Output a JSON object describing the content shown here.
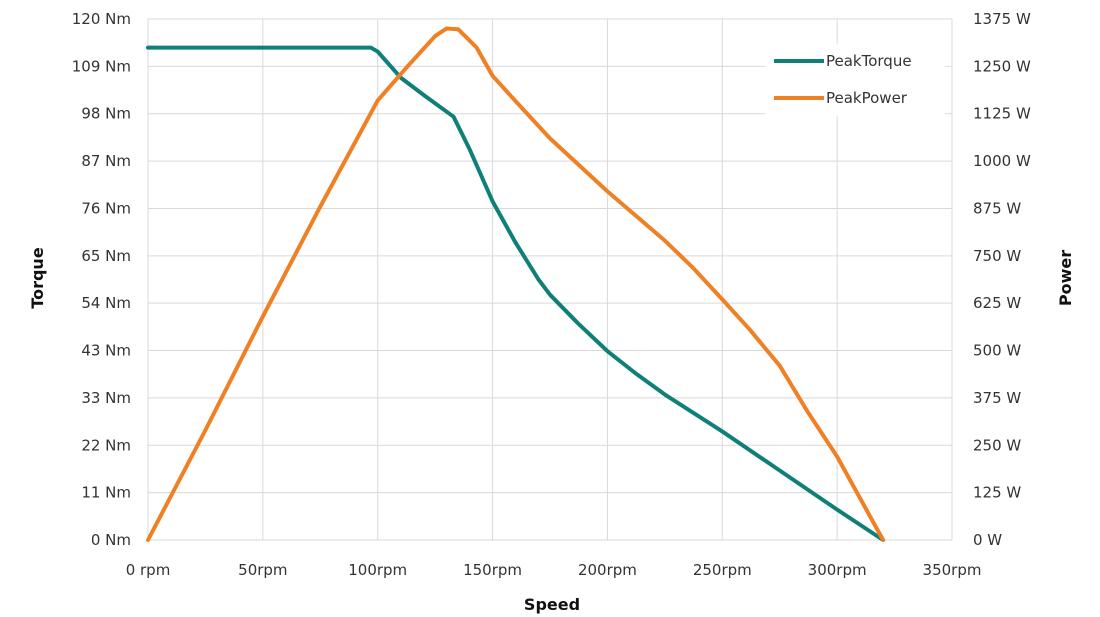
{
  "chart_data": {
    "type": "line",
    "xlabel": "Speed",
    "ylabel_left": "Torque",
    "ylabel_right": "Power",
    "x_ticks": [
      "0 rpm",
      "50rpm",
      "100rpm",
      "150rpm",
      "200rpm",
      "250rpm",
      "300rpm",
      "350rpm"
    ],
    "x_tick_values": [
      0,
      50,
      100,
      150,
      200,
      250,
      300,
      350
    ],
    "left_ticks": [
      "0 Nm",
      "11 Nm",
      "22 Nm",
      "33 Nm",
      "43 Nm",
      "54 Nm",
      "65 Nm",
      "76 Nm",
      "87 Nm",
      "98 Nm",
      "109 Nm",
      "120 Nm"
    ],
    "right_ticks": [
      "0 W",
      "125 W",
      "250 W",
      "375 W",
      "500 W",
      "625 W",
      "750 W",
      "875 W",
      "1000 W",
      "1125 W",
      "1250 W",
      "1375 W"
    ],
    "xlim": [
      0,
      350
    ],
    "ylim_left": [
      0,
      120
    ],
    "ylim_right": [
      0,
      1375
    ],
    "grid": "vertical",
    "legend_position": "top-right",
    "series": [
      {
        "name": "PeakTorque",
        "axis": "left",
        "color": "#0e8078",
        "points": [
          [
            0,
            113.4
          ],
          [
            97,
            113.4
          ],
          [
            100,
            112.5
          ],
          [
            110,
            106.5
          ],
          [
            120,
            102.5
          ],
          [
            133,
            97.5
          ],
          [
            140,
            90
          ],
          [
            150,
            78
          ],
          [
            160,
            68.5
          ],
          [
            170,
            60
          ],
          [
            175,
            56.5
          ],
          [
            187,
            50
          ],
          [
            200,
            43.5
          ],
          [
            212,
            38.5
          ],
          [
            225,
            33.5
          ],
          [
            250,
            25
          ],
          [
            275,
            16
          ],
          [
            300,
            7
          ],
          [
            320,
            0
          ]
        ]
      },
      {
        "name": "PeakPower",
        "axis": "right",
        "color": "#f08024",
        "points": [
          [
            0,
            0
          ],
          [
            25,
            290
          ],
          [
            50,
            590
          ],
          [
            75,
            880
          ],
          [
            100,
            1160
          ],
          [
            113,
            1250
          ],
          [
            125,
            1330
          ],
          [
            130,
            1350
          ],
          [
            135,
            1348
          ],
          [
            143,
            1300
          ],
          [
            150,
            1225
          ],
          [
            162,
            1145
          ],
          [
            175,
            1060
          ],
          [
            200,
            920
          ],
          [
            225,
            790
          ],
          [
            237,
            720
          ],
          [
            250,
            635
          ],
          [
            262,
            555
          ],
          [
            275,
            460
          ],
          [
            287,
            340
          ],
          [
            300,
            220
          ],
          [
            320,
            0
          ]
        ]
      }
    ]
  }
}
